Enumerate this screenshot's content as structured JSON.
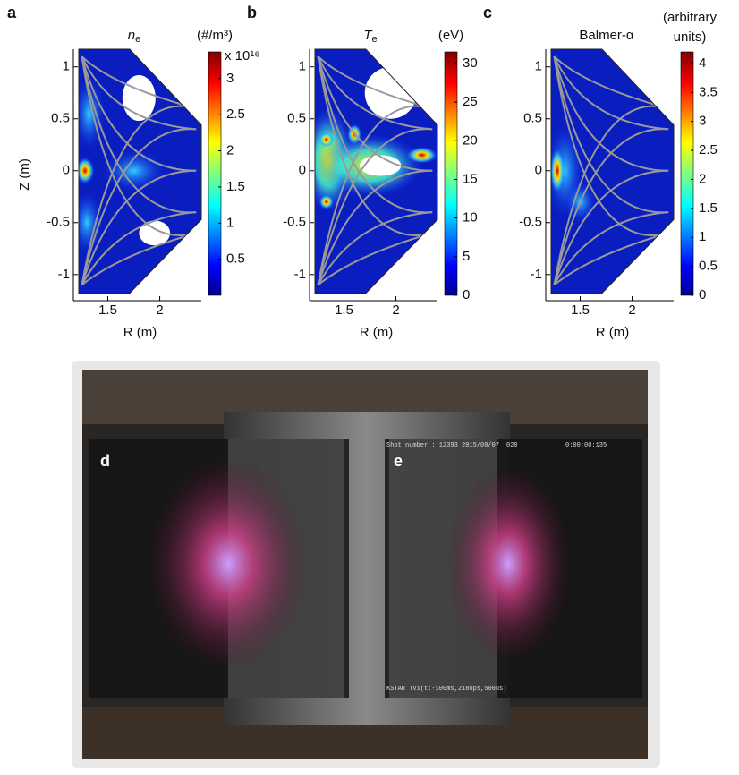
{
  "chart_data": [
    {
      "type": "heatmap",
      "label": "a",
      "title": "n",
      "title_sub": "e",
      "unit": [
        "(#/m³)"
      ],
      "scale": "x 10¹⁶",
      "xlabel": "R (m)",
      "ylabel": "Z (m)",
      "xlim": [
        1.22,
        2.4
      ],
      "ylim": [
        -1.2,
        1.17
      ],
      "xticks": [
        1.5,
        2
      ],
      "yticks": [
        -1,
        -0.5,
        0,
        0.5,
        1
      ],
      "clim": [
        0,
        3.37
      ],
      "cticks": [
        0.5,
        1,
        1.5,
        2,
        2.5,
        3
      ]
    },
    {
      "type": "heatmap",
      "label": "b",
      "title": "T",
      "title_sub": "e",
      "unit": [
        "(eV)"
      ],
      "xlabel": "R (m)",
      "xlim": [
        1.22,
        2.4
      ],
      "ylim": [
        -1.2,
        1.17
      ],
      "xticks": [
        1.5,
        2
      ],
      "yticks": [
        -1,
        -0.5,
        0,
        0.5,
        1
      ],
      "clim": [
        0,
        31.5
      ],
      "cticks": [
        0,
        5,
        10,
        15,
        20,
        25,
        30
      ]
    },
    {
      "type": "heatmap",
      "label": "c",
      "title": "Balmer-α",
      "unit": [
        "(arbitrary",
        "units)"
      ],
      "xlabel": "R (m)",
      "xlim": [
        1.22,
        2.4
      ],
      "ylim": [
        -1.2,
        1.17
      ],
      "xticks": [
        1.5,
        2
      ],
      "yticks": [
        -1,
        -0.5,
        0,
        0.5,
        1
      ],
      "clim": [
        0,
        4.2
      ],
      "cticks": [
        0,
        0.5,
        1,
        1.5,
        2,
        2.5,
        3,
        3.5,
        4
      ]
    }
  ],
  "photos": {
    "left_label": "d",
    "right_label": "e",
    "shot": "Shot number : 12393 2015/08/07",
    "frame": "020",
    "time": "0:00:00:135",
    "camera": "KSTAR TV1(t:-100ms,2180ps,500us)"
  }
}
